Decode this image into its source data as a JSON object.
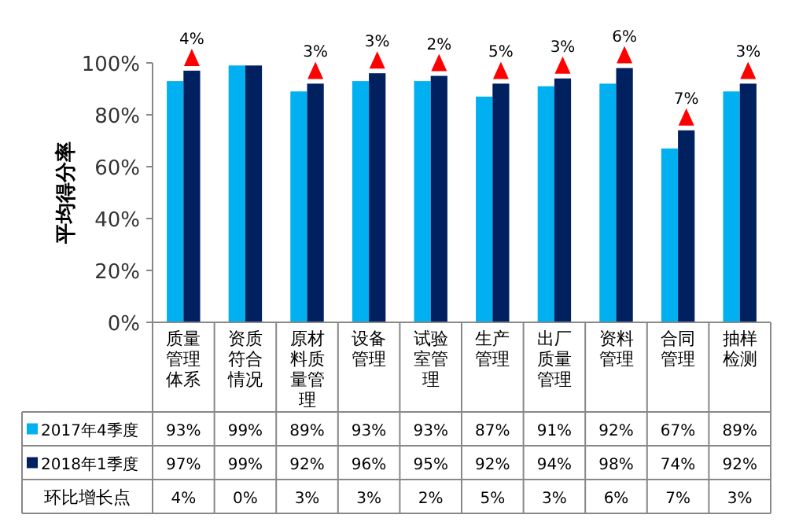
{
  "chart_data": {
    "type": "bar",
    "ylabel": "平均得分率",
    "categories": [
      "质量管理体系",
      "资质符合情况",
      "原材料质量管理",
      "设备管理",
      "试验室管理",
      "生产管理",
      "出厂质量管理",
      "资料管理",
      "合同管理",
      "抽样检测"
    ],
    "series": [
      {
        "name": "2017年4季度",
        "color": "#00b0f0",
        "values": [
          93,
          99,
          89,
          93,
          93,
          87,
          91,
          92,
          67,
          89
        ],
        "value_labels": [
          "93%",
          "99%",
          "89%",
          "93%",
          "93%",
          "87%",
          "91%",
          "92%",
          "67%",
          "89%"
        ]
      },
      {
        "name": "2018年1季度",
        "color": "#002060",
        "values": [
          97,
          99,
          92,
          96,
          95,
          92,
          94,
          98,
          74,
          92
        ],
        "value_labels": [
          "97%",
          "99%",
          "92%",
          "96%",
          "95%",
          "92%",
          "94%",
          "98%",
          "74%",
          "92%"
        ]
      }
    ],
    "ylim": [
      0,
      100
    ],
    "yticks": [
      {
        "value": 0,
        "label": "0%"
      },
      {
        "value": 20,
        "label": "20%"
      },
      {
        "value": 40,
        "label": "40%"
      },
      {
        "value": 60,
        "label": "60%"
      },
      {
        "value": 80,
        "label": "80%"
      },
      {
        "value": 100,
        "label": "100%"
      }
    ],
    "legend": "bottom",
    "grid": false,
    "annotations": [
      "环比增长点",
      {
        "text": "4%",
        "x": "质量管理体系",
        "y": 97
      },
      "0%",
      {
        "text": "3%",
        "x": "原材料质量管理",
        "y": 92
      },
      {
        "text": "3%",
        "x": "设备管理",
        "y": 96
      },
      {
        "text": "2%",
        "x": "试验室管理",
        "y": 95
      },
      {
        "text": "5%",
        "x": "生产管理",
        "y": 92
      },
      {
        "text": "3%",
        "x": "出厂质量管理",
        "y": 94
      },
      {
        "text": "6%",
        "x": "资料管理",
        "y": 98
      },
      {
        "text": "7%",
        "x": "合同管理",
        "y": 74
      },
      {
        "text": "3%",
        "x": "抽样检测",
        "y": 92
      }
    ]
  }
}
